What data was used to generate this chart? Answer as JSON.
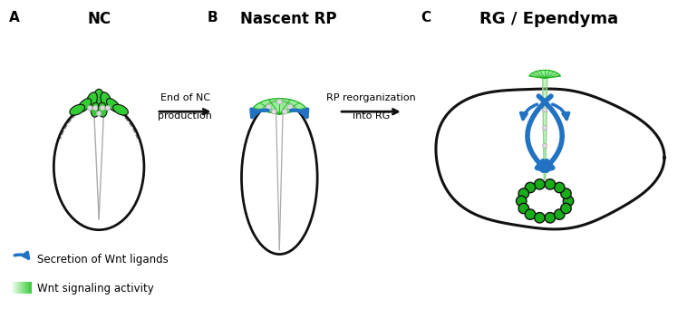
{
  "panel_A_label": "A",
  "panel_B_label": "B",
  "panel_C_label": "C",
  "panel_A_title": "NC",
  "panel_B_title": "Nascent RP",
  "panel_C_title": "RG / Ependyma",
  "arrow1_text_line1": "End of NC",
  "arrow1_text_line2": "production",
  "arrow2_text_line1": "RP reorganization",
  "arrow2_text_line2": "into RG",
  "legend1_text": "Secretion of Wnt ligands",
  "legend2_text": "Wnt signaling activity",
  "green_dark": "#1aad1a",
  "green_mid": "#33cc33",
  "green_light": "#88ee88",
  "blue": "#2272c3",
  "black": "#111111",
  "white": "#ffffff",
  "gray_line": "#aaaaaa",
  "bg_color": "#ffffff",
  "fig_w": 7.69,
  "fig_h": 3.41,
  "dpi": 100
}
